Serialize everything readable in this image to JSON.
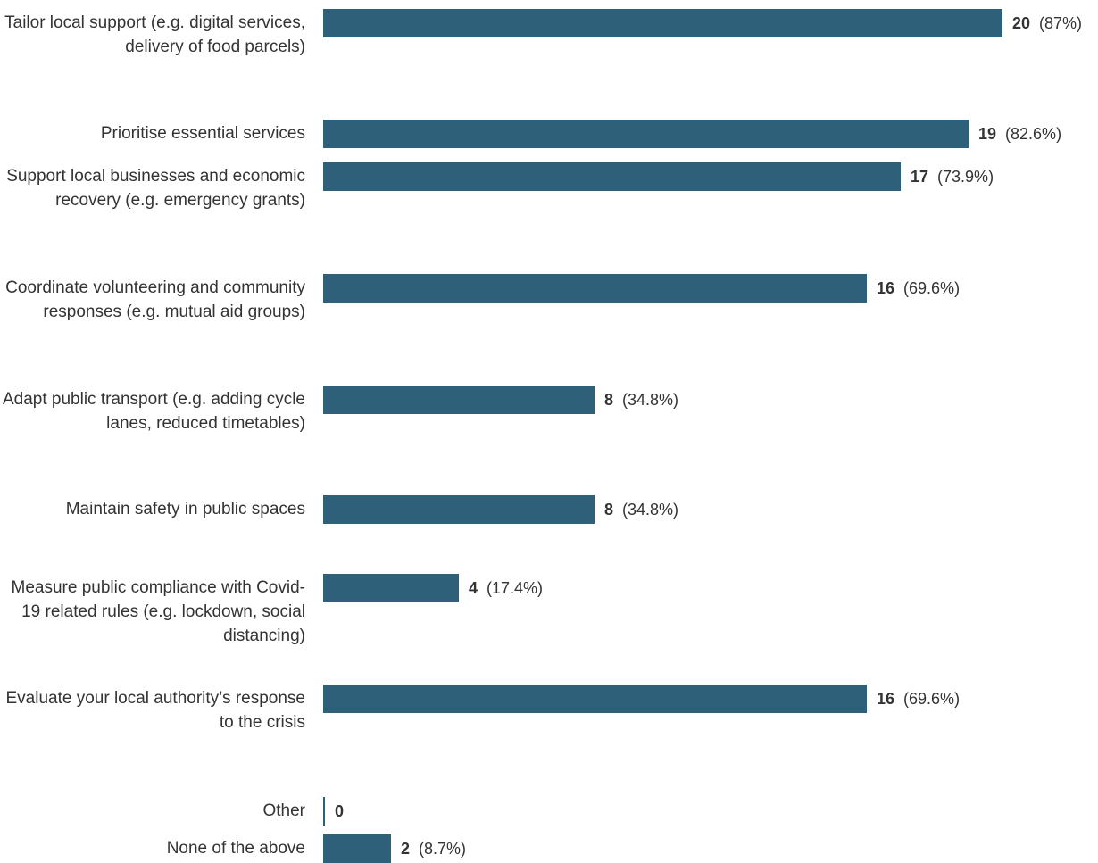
{
  "chart_data": {
    "type": "bar",
    "orientation": "horizontal",
    "categories": [
      "Tailor local support (e.g. digital services, delivery of food parcels)",
      "Prioritise essential services",
      "Support local businesses and economic recovery (e.g. emergency grants)",
      "Coordinate volunteering and community responses (e.g. mutual aid groups)",
      "Adapt public transport (e.g. adding cycle lanes, reduced timetables)",
      "Maintain safety in public spaces",
      "Measure public compliance with Covid-19 related rules (e.g. lockdown, social distancing)",
      "Evaluate your local authority’s response to the crisis",
      "Other",
      "None of the above"
    ],
    "values": [
      20,
      19,
      17,
      16,
      8,
      8,
      4,
      16,
      0,
      2
    ],
    "percent_labels": [
      "(87%)",
      "(82.6%)",
      "(73.9%)",
      "(69.6%)",
      "(34.8%)",
      "(34.8%)",
      "(17.4%)",
      "(69.6%)",
      "",
      "(8.7%)"
    ],
    "xlim": [
      0,
      20
    ],
    "grid": false,
    "legend": "none",
    "bar_color": "#2e6079"
  }
}
